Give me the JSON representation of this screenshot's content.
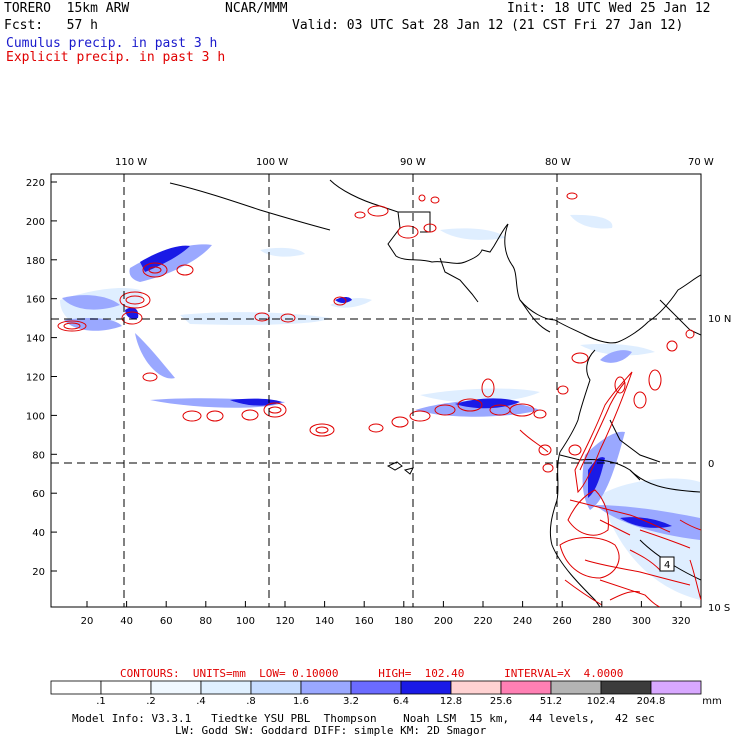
{
  "header": {
    "model": "TORERO  15km ARW",
    "org": "NCAR/MMM",
    "init": "Init: 18 UTC Wed 25 Jan 12",
    "fcst": "Fcst:   57 h",
    "valid": "Valid: 03 UTC Sat 28 Jan 12 (21 CST Fri 27 Jan 12)",
    "legend_cumulus": "Cumulus precip. in past 3 h",
    "legend_explicit": "Explicit precip. in past 3 h",
    "cumulus_color": "#1a1acc",
    "explicit_color": "#e00000"
  },
  "map": {
    "lon_labels": [
      "110 W",
      "100 W",
      "90 W",
      "80 W",
      "70 W"
    ],
    "lat_labels": [
      "10 N",
      "0",
      "10 S"
    ],
    "x_ticks": [
      "20",
      "40",
      "60",
      "80",
      "100",
      "120",
      "140",
      "160",
      "180",
      "200",
      "220",
      "240",
      "260",
      "280",
      "300",
      "320"
    ],
    "y_ticks": [
      "20",
      "40",
      "60",
      "80",
      "100",
      "120",
      "140",
      "160",
      "180",
      "200",
      "220"
    ],
    "box_label": "4"
  },
  "contours": {
    "text": "CONTOURS:  UNITS=mm  LOW= 0.10000      HIGH=  102.40      INTERVAL=X  4.0000"
  },
  "colorbar": {
    "unit": "mm",
    "labels": [
      ".1",
      ".2",
      ".4",
      ".8",
      "1.6",
      "3.2",
      "6.4",
      "12.8",
      "25.6",
      "51.2",
      "102.4",
      "204.8"
    ],
    "colors": [
      "#ffffff",
      "#ffffff",
      "#f0f8ff",
      "#e0f0ff",
      "#c6dcff",
      "#9aa8ff",
      "#6b6bff",
      "#1a1ae6",
      "#ffd2d2",
      "#ff80b4",
      "#b4b4b4",
      "#3c3c3c",
      "#d8a8ff"
    ]
  },
  "footer": {
    "line1": "Model Info: V3.3.1   Tiedtke YSU PBL  Thompson    Noah LSM  15 km,   44 levels,   42 sec",
    "line2": "LW: Godd SW: Goddard DIFF: simple KM: 2D Smagor"
  }
}
